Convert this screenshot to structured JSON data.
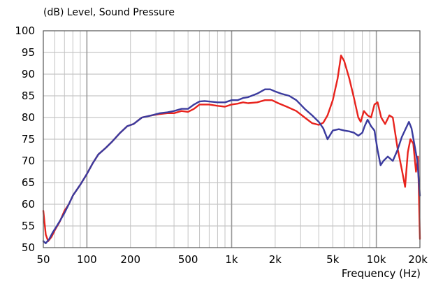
{
  "chart_data": {
    "type": "line",
    "title": "(dB)  Level, Sound Pressure",
    "xlabel": "Frequency  (Hz)",
    "ylabel": "",
    "x_scale": "log",
    "xlim": [
      50,
      20000
    ],
    "ylim": [
      50,
      100
    ],
    "x_ticks": [
      50,
      100,
      200,
      500,
      1000,
      2000,
      5000,
      10000,
      20000
    ],
    "x_tick_labels": [
      "50",
      "100",
      "200",
      "500",
      "1k",
      "2k",
      "5k",
      "10k",
      "20k"
    ],
    "y_ticks": [
      50,
      55,
      60,
      65,
      70,
      75,
      80,
      85,
      90,
      95,
      100
    ],
    "y_tick_labels": [
      "50",
      "55",
      "60",
      "65",
      "70",
      "75",
      "80",
      "85",
      "90",
      "95",
      "100"
    ],
    "grid": true,
    "legend": "none",
    "series": [
      {
        "color": "#e8231d",
        "points": [
          [
            50,
            58.5
          ],
          [
            52,
            53
          ],
          [
            54,
            51.5
          ],
          [
            57,
            52.5
          ],
          [
            60,
            54
          ],
          [
            65,
            56
          ],
          [
            70,
            58.5
          ],
          [
            75,
            60
          ],
          [
            80,
            62
          ],
          [
            90,
            64.5
          ],
          [
            100,
            67
          ],
          [
            110,
            69.5
          ],
          [
            120,
            71.5
          ],
          [
            135,
            73
          ],
          [
            150,
            74.5
          ],
          [
            170,
            76.5
          ],
          [
            190,
            78
          ],
          [
            210,
            78.5
          ],
          [
            240,
            80
          ],
          [
            280,
            80.5
          ],
          [
            320,
            80.8
          ],
          [
            360,
            81
          ],
          [
            400,
            81
          ],
          [
            450,
            81.5
          ],
          [
            500,
            81.3
          ],
          [
            550,
            82
          ],
          [
            600,
            83
          ],
          [
            650,
            83
          ],
          [
            700,
            83
          ],
          [
            800,
            82.7
          ],
          [
            900,
            82.5
          ],
          [
            1000,
            83
          ],
          [
            1100,
            83.2
          ],
          [
            1200,
            83.5
          ],
          [
            1300,
            83.3
          ],
          [
            1500,
            83.5
          ],
          [
            1700,
            84
          ],
          [
            1900,
            84
          ],
          [
            2100,
            83.3
          ],
          [
            2400,
            82.5
          ],
          [
            2800,
            81.5
          ],
          [
            3200,
            80
          ],
          [
            3600,
            78.7
          ],
          [
            4000,
            78.3
          ],
          [
            4300,
            78.8
          ],
          [
            4600,
            80.5
          ],
          [
            5000,
            84
          ],
          [
            5400,
            89
          ],
          [
            5700,
            94.3
          ],
          [
            6000,
            93
          ],
          [
            6500,
            89
          ],
          [
            7000,
            84.5
          ],
          [
            7500,
            80
          ],
          [
            7800,
            79
          ],
          [
            8200,
            81.5
          ],
          [
            8700,
            80.5
          ],
          [
            9200,
            80
          ],
          [
            9700,
            83
          ],
          [
            10200,
            83.5
          ],
          [
            10800,
            80
          ],
          [
            11500,
            78.5
          ],
          [
            12300,
            80.5
          ],
          [
            13000,
            80
          ],
          [
            14000,
            73
          ],
          [
            15000,
            68
          ],
          [
            15800,
            64
          ],
          [
            16500,
            72
          ],
          [
            17200,
            75
          ],
          [
            18000,
            74
          ],
          [
            18800,
            67.5
          ],
          [
            19400,
            71
          ],
          [
            20000,
            52
          ]
        ]
      },
      {
        "color": "#3b3b9e",
        "points": [
          [
            50,
            51.5
          ],
          [
            52,
            51
          ],
          [
            55,
            52
          ],
          [
            58,
            53.5
          ],
          [
            62,
            55
          ],
          [
            66,
            56.5
          ],
          [
            70,
            58
          ],
          [
            75,
            60
          ],
          [
            80,
            62
          ],
          [
            90,
            64.5
          ],
          [
            100,
            67
          ],
          [
            110,
            69.5
          ],
          [
            120,
            71.5
          ],
          [
            135,
            73
          ],
          [
            150,
            74.5
          ],
          [
            170,
            76.5
          ],
          [
            190,
            78
          ],
          [
            210,
            78.5
          ],
          [
            240,
            80
          ],
          [
            280,
            80.5
          ],
          [
            320,
            81
          ],
          [
            360,
            81.2
          ],
          [
            400,
            81.5
          ],
          [
            450,
            82
          ],
          [
            500,
            82
          ],
          [
            550,
            83
          ],
          [
            600,
            83.7
          ],
          [
            650,
            83.8
          ],
          [
            700,
            83.7
          ],
          [
            800,
            83.5
          ],
          [
            900,
            83.5
          ],
          [
            1000,
            84
          ],
          [
            1100,
            84
          ],
          [
            1200,
            84.5
          ],
          [
            1300,
            84.7
          ],
          [
            1500,
            85.5
          ],
          [
            1700,
            86.5
          ],
          [
            1850,
            86.5
          ],
          [
            2000,
            86
          ],
          [
            2200,
            85.5
          ],
          [
            2500,
            85
          ],
          [
            2800,
            84
          ],
          [
            3200,
            82
          ],
          [
            3600,
            80.5
          ],
          [
            4000,
            79
          ],
          [
            4300,
            77.5
          ],
          [
            4600,
            75
          ],
          [
            5000,
            77
          ],
          [
            5500,
            77.3
          ],
          [
            6000,
            77
          ],
          [
            6500,
            76.8
          ],
          [
            7000,
            76.5
          ],
          [
            7500,
            75.8
          ],
          [
            8000,
            76.5
          ],
          [
            8300,
            78
          ],
          [
            8700,
            79.5
          ],
          [
            9200,
            78
          ],
          [
            9700,
            77
          ],
          [
            10200,
            72.5
          ],
          [
            10700,
            69
          ],
          [
            11200,
            70
          ],
          [
            12000,
            71
          ],
          [
            13000,
            70
          ],
          [
            14000,
            72.5
          ],
          [
            15000,
            75.5
          ],
          [
            16000,
            77.5
          ],
          [
            16800,
            79
          ],
          [
            17500,
            77.5
          ],
          [
            18500,
            73
          ],
          [
            19200,
            70
          ],
          [
            20000,
            62
          ]
        ]
      }
    ]
  }
}
